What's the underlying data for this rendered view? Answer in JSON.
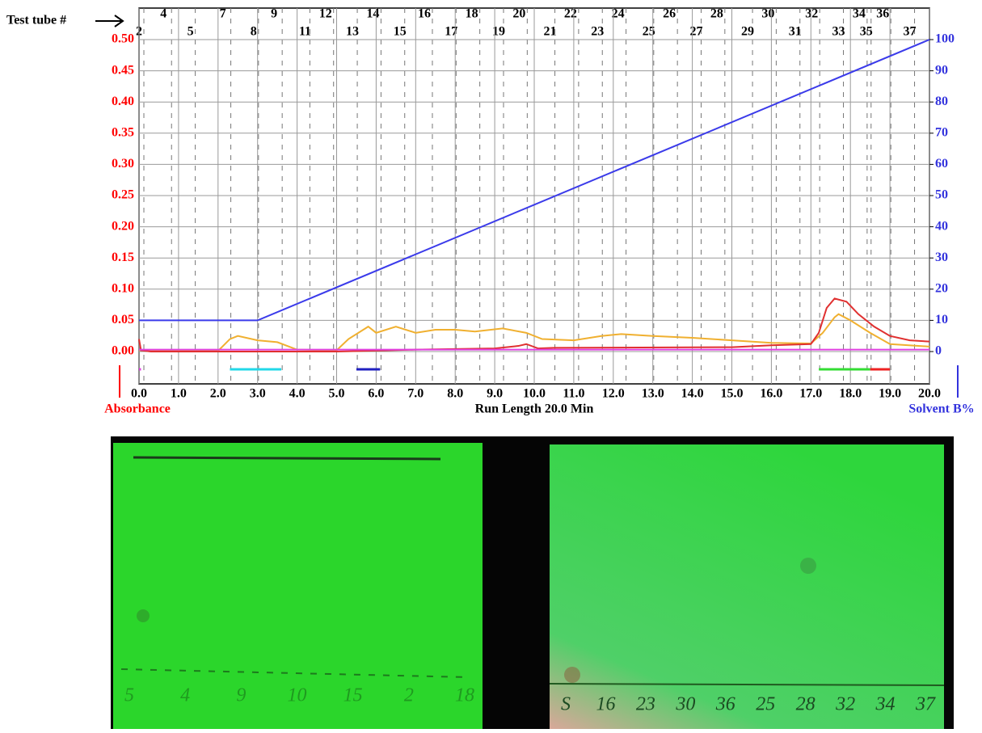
{
  "chart_data": {
    "type": "line",
    "tube_caption": "Test tube #",
    "x_label": "Run Length 20.0 Min",
    "y_label": "Absorbance",
    "y2_label": "Solvent B%",
    "xlim": [
      0,
      20
    ],
    "xticks": [
      {
        "value": 0,
        "label": "0.0"
      },
      {
        "value": 1,
        "label": "1.0"
      },
      {
        "value": 2,
        "label": "2.0"
      },
      {
        "value": 3,
        "label": "3.0"
      },
      {
        "value": 4,
        "label": "4.0"
      },
      {
        "value": 5,
        "label": "5.0"
      },
      {
        "value": 6,
        "label": "6.0"
      },
      {
        "value": 7,
        "label": "7.0"
      },
      {
        "value": 8,
        "label": "8.0"
      },
      {
        "value": 9,
        "label": "9.0"
      },
      {
        "value": 10,
        "label": "10.0"
      },
      {
        "value": 11,
        "label": "11.0"
      },
      {
        "value": 12,
        "label": "12.0"
      },
      {
        "value": 13,
        "label": "13.0"
      },
      {
        "value": 14,
        "label": "14.0"
      },
      {
        "value": 15,
        "label": "15.0"
      },
      {
        "value": 16,
        "label": "16.0"
      },
      {
        "value": 17,
        "label": "17.0"
      },
      {
        "value": 18,
        "label": "18.0"
      },
      {
        "value": 19,
        "label": "19.0"
      },
      {
        "value": 20,
        "label": "20.0"
      }
    ],
    "ylim": [
      0,
      0.5
    ],
    "yticks": [
      {
        "value": 0,
        "label": "0.00"
      },
      {
        "value": 0.05,
        "label": "0.05"
      },
      {
        "value": 0.1,
        "label": "0.10"
      },
      {
        "value": 0.15,
        "label": "0.15"
      },
      {
        "value": 0.2,
        "label": "0.20"
      },
      {
        "value": 0.25,
        "label": "0.25"
      },
      {
        "value": 0.3,
        "label": "0.30"
      },
      {
        "value": 0.35,
        "label": "0.35"
      },
      {
        "value": 0.4,
        "label": "0.40"
      },
      {
        "value": 0.45,
        "label": "0.45"
      },
      {
        "value": 0.5,
        "label": "0.50"
      }
    ],
    "y2lim": [
      0,
      100
    ],
    "y2ticks": [
      0,
      10,
      20,
      30,
      40,
      50,
      60,
      70,
      80,
      90,
      100
    ],
    "y_color": "#ff0000",
    "y2_color": "#3333dd",
    "grid": true,
    "series": [
      {
        "color": "#3b3bea",
        "axis": "y2",
        "x": [
          0,
          3,
          20
        ],
        "values": [
          10,
          10,
          100
        ]
      },
      {
        "color": "#f0b030",
        "x": [
          0,
          2,
          2.3,
          2.5,
          3,
          3.5,
          4,
          5,
          5.3,
          5.8,
          6,
          6.5,
          7,
          7.5,
          8,
          8.5,
          9.2,
          9.8,
          10.2,
          11,
          11.7,
          12.2,
          13,
          14,
          15,
          16,
          17,
          17.3,
          17.6,
          17.7,
          18,
          18.5,
          19,
          20
        ],
        "values": [
          0.002,
          0.001,
          0.02,
          0.025,
          0.018,
          0.015,
          0.003,
          0.002,
          0.02,
          0.04,
          0.03,
          0.04,
          0.03,
          0.035,
          0.035,
          0.032,
          0.037,
          0.03,
          0.02,
          0.018,
          0.025,
          0.028,
          0.025,
          0.022,
          0.018,
          0.014,
          0.013,
          0.03,
          0.055,
          0.06,
          0.05,
          0.03,
          0.012,
          0.008
        ]
      },
      {
        "color": "#e03030",
        "x": [
          0,
          0.05,
          0.3,
          5,
          7,
          9,
          9.6,
          9.8,
          10.1,
          10.5,
          15,
          16,
          17,
          17.2,
          17.4,
          17.6,
          17.9,
          18.2,
          18.6,
          19,
          19.5,
          20
        ],
        "values": [
          0.02,
          0.002,
          0,
          0,
          0.003,
          0.005,
          0.009,
          0.012,
          0.005,
          0.006,
          0.007,
          0.01,
          0.012,
          0.03,
          0.07,
          0.085,
          0.08,
          0.06,
          0.04,
          0.025,
          0.018,
          0.016
        ]
      },
      {
        "color": "#e040e0",
        "x": [
          0,
          20
        ],
        "values": [
          0.003,
          0.003
        ]
      }
    ],
    "fractions": [
      {
        "start": 0,
        "end": 0.05,
        "color": "#e040e0"
      },
      {
        "start": 2.3,
        "end": 3.6,
        "color": "#22d8e8"
      },
      {
        "start": 5.5,
        "end": 6.1,
        "color": "#2020c0"
      },
      {
        "start": 17.2,
        "end": 18.5,
        "color": "#33dd33"
      },
      {
        "start": 18.5,
        "end": 19.0,
        "color": "#ee2222"
      }
    ],
    "tubes_top": [
      {
        "label": "4",
        "x": 0.7
      },
      {
        "label": "7",
        "x": 2.2
      },
      {
        "label": "9",
        "x": 3.5
      },
      {
        "label": "12",
        "x": 4.8
      },
      {
        "label": "14",
        "x": 6.0
      },
      {
        "label": "16",
        "x": 7.3
      },
      {
        "label": "18",
        "x": 8.5
      },
      {
        "label": "20",
        "x": 9.7
      },
      {
        "label": "22",
        "x": 11.0
      },
      {
        "label": "24",
        "x": 12.2
      },
      {
        "label": "26",
        "x": 13.5
      },
      {
        "label": "28",
        "x": 14.7
      },
      {
        "label": "30",
        "x": 16.0
      },
      {
        "label": "32",
        "x": 17.1
      },
      {
        "label": "34",
        "x": 18.3
      },
      {
        "label": "36",
        "x": 18.9
      }
    ],
    "tubes_bottom": [
      {
        "label": "2",
        "x": 0.0
      },
      {
        "label": "5",
        "x": 1.3
      },
      {
        "label": "8",
        "x": 2.9
      },
      {
        "label": "11",
        "x": 4.2
      },
      {
        "label": "13",
        "x": 5.4
      },
      {
        "label": "15",
        "x": 6.6
      },
      {
        "label": "17",
        "x": 7.9
      },
      {
        "label": "19",
        "x": 9.1
      },
      {
        "label": "21",
        "x": 10.4
      },
      {
        "label": "23",
        "x": 11.6
      },
      {
        "label": "25",
        "x": 12.9
      },
      {
        "label": "27",
        "x": 14.1
      },
      {
        "label": "29",
        "x": 15.4
      },
      {
        "label": "31",
        "x": 16.6
      },
      {
        "label": "33",
        "x": 17.7
      },
      {
        "label": "35",
        "x": 18.4
      },
      {
        "label": "37",
        "x": 19.5
      }
    ]
  },
  "plates": [
    {
      "lanes": [
        "5",
        "4",
        "9",
        "10",
        "15",
        "2",
        "18"
      ]
    },
    {
      "lanes": [
        "S",
        "16",
        "23",
        "30",
        "36",
        "25",
        "28",
        "32",
        "34",
        "37"
      ]
    }
  ]
}
